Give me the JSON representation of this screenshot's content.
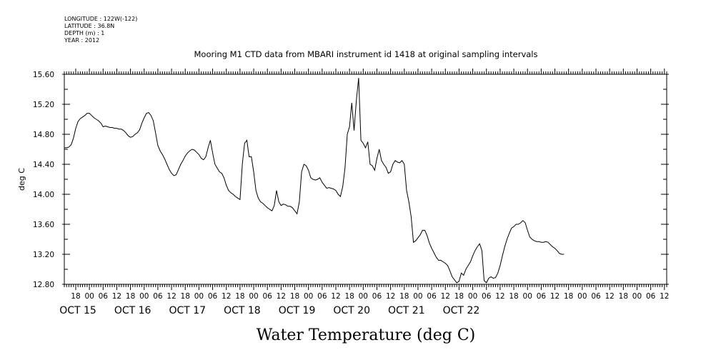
{
  "meta": {
    "longitude": "LONGITUDE : 122W(-122)",
    "latitude": "LATITUDE : 36.8N",
    "depth": "DEPTH (m) : 1",
    "year": "YEAR : 2012"
  },
  "chart_data": {
    "type": "line",
    "title": "Mooring M1 CTD data from MBARI instrument id 1418 at original sampling intervals",
    "xlabel": "Water Temperature (deg C)",
    "ylabel": "deg C",
    "ylim": [
      12.8,
      15.6
    ],
    "yticks": [
      "12.80",
      "13.20",
      "13.60",
      "14.00",
      "14.40",
      "14.80",
      "15.20",
      "15.60"
    ],
    "x_unit": "hours since 2012-10-15 00:00",
    "xlim": [
      13,
      277
    ],
    "hour_labels": [
      "18",
      "00",
      "06",
      "12",
      "18",
      "00",
      "06",
      "12",
      "18",
      "00",
      "06",
      "12",
      "18",
      "00",
      "06",
      "12",
      "18",
      "00",
      "06",
      "12",
      "18",
      "00",
      "06",
      "12",
      "18",
      "00",
      "06",
      "12",
      "18",
      "00",
      "06",
      "12",
      "18",
      "00",
      "06",
      "12",
      "18",
      "00",
      "06",
      "12",
      "18",
      "00",
      "06",
      "12"
    ],
    "day_labels": [
      {
        "label": "OCT 15",
        "hour": 0
      },
      {
        "label": "OCT 16",
        "hour": 24
      },
      {
        "label": "OCT 17",
        "hour": 48
      },
      {
        "label": "OCT 18",
        "hour": 72
      },
      {
        "label": "OCT 19",
        "hour": 96
      },
      {
        "label": "OCT 20",
        "hour": 120
      },
      {
        "label": "OCT 21",
        "hour": 144
      },
      {
        "label": "OCT 22",
        "hour": 168
      }
    ],
    "series": [
      {
        "points": [
          [
            13,
            14.62
          ],
          [
            14,
            14.62
          ],
          [
            15,
            14.63
          ],
          [
            16,
            14.66
          ],
          [
            17,
            14.75
          ],
          [
            18,
            14.88
          ],
          [
            19,
            14.97
          ],
          [
            20,
            15.01
          ],
          [
            21,
            15.03
          ],
          [
            22,
            15.05
          ],
          [
            23,
            15.08
          ],
          [
            24,
            15.08
          ],
          [
            25,
            15.05
          ],
          [
            26,
            15.02
          ],
          [
            27,
            15.0
          ],
          [
            28,
            14.98
          ],
          [
            29,
            14.95
          ],
          [
            30,
            14.9
          ],
          [
            31,
            14.91
          ],
          [
            32,
            14.9
          ],
          [
            33,
            14.89
          ],
          [
            34,
            14.89
          ],
          [
            35,
            14.88
          ],
          [
            36,
            14.88
          ],
          [
            37,
            14.87
          ],
          [
            38,
            14.87
          ],
          [
            39,
            14.85
          ],
          [
            40,
            14.82
          ],
          [
            41,
            14.78
          ],
          [
            42,
            14.76
          ],
          [
            43,
            14.77
          ],
          [
            44,
            14.8
          ],
          [
            45,
            14.82
          ],
          [
            46,
            14.86
          ],
          [
            47,
            14.95
          ],
          [
            48,
            15.02
          ],
          [
            49,
            15.08
          ],
          [
            50,
            15.09
          ],
          [
            51,
            15.05
          ],
          [
            52,
            14.98
          ],
          [
            53,
            14.82
          ],
          [
            54,
            14.65
          ],
          [
            55,
            14.58
          ],
          [
            56,
            14.53
          ],
          [
            57,
            14.47
          ],
          [
            58,
            14.4
          ],
          [
            59,
            14.33
          ],
          [
            60,
            14.28
          ],
          [
            61,
            14.25
          ],
          [
            62,
            14.26
          ],
          [
            63,
            14.33
          ],
          [
            64,
            14.4
          ],
          [
            65,
            14.45
          ],
          [
            66,
            14.51
          ],
          [
            67,
            14.55
          ],
          [
            68,
            14.58
          ],
          [
            69,
            14.6
          ],
          [
            70,
            14.59
          ],
          [
            71,
            14.56
          ],
          [
            72,
            14.53
          ],
          [
            73,
            14.48
          ],
          [
            74,
            14.46
          ],
          [
            75,
            14.5
          ],
          [
            76,
            14.62
          ],
          [
            77,
            14.72
          ],
          [
            78,
            14.55
          ],
          [
            79,
            14.4
          ],
          [
            80,
            14.35
          ],
          [
            81,
            14.3
          ],
          [
            82,
            14.28
          ],
          [
            83,
            14.22
          ],
          [
            84,
            14.12
          ],
          [
            85,
            14.05
          ],
          [
            86,
            14.02
          ],
          [
            87,
            14.0
          ],
          [
            88,
            13.97
          ],
          [
            89,
            13.95
          ],
          [
            90,
            13.93
          ],
          [
            91,
            14.4
          ],
          [
            92,
            14.68
          ],
          [
            93,
            14.72
          ],
          [
            94,
            14.5
          ],
          [
            95,
            14.5
          ],
          [
            96,
            14.3
          ],
          [
            97,
            14.05
          ],
          [
            98,
            13.95
          ],
          [
            99,
            13.9
          ],
          [
            100,
            13.88
          ],
          [
            101,
            13.85
          ],
          [
            102,
            13.82
          ],
          [
            103,
            13.8
          ],
          [
            104,
            13.78
          ],
          [
            105,
            13.85
          ],
          [
            106,
            14.05
          ],
          [
            107,
            13.9
          ],
          [
            108,
            13.85
          ],
          [
            109,
            13.87
          ],
          [
            110,
            13.86
          ],
          [
            111,
            13.84
          ],
          [
            112,
            13.84
          ],
          [
            113,
            13.82
          ],
          [
            114,
            13.78
          ],
          [
            115,
            13.74
          ],
          [
            116,
            13.9
          ],
          [
            117,
            14.3
          ],
          [
            118,
            14.4
          ],
          [
            119,
            14.38
          ],
          [
            120,
            14.32
          ],
          [
            121,
            14.22
          ],
          [
            122,
            14.2
          ],
          [
            123,
            14.19
          ],
          [
            124,
            14.2
          ],
          [
            125,
            14.22
          ],
          [
            126,
            14.16
          ],
          [
            127,
            14.12
          ],
          [
            128,
            14.08
          ],
          [
            129,
            14.09
          ],
          [
            130,
            14.08
          ],
          [
            131,
            14.07
          ],
          [
            132,
            14.05
          ],
          [
            133,
            14.0
          ],
          [
            134,
            13.97
          ],
          [
            135,
            14.1
          ],
          [
            136,
            14.35
          ],
          [
            137,
            14.8
          ],
          [
            138,
            14.9
          ],
          [
            139,
            15.22
          ],
          [
            140,
            14.85
          ],
          [
            141,
            15.25
          ],
          [
            142,
            15.55
          ],
          [
            143,
            14.72
          ],
          [
            144,
            14.68
          ],
          [
            145,
            14.62
          ],
          [
            146,
            14.7
          ],
          [
            147,
            14.4
          ],
          [
            148,
            14.38
          ],
          [
            149,
            14.32
          ],
          [
            150,
            14.48
          ],
          [
            151,
            14.6
          ],
          [
            152,
            14.45
          ],
          [
            153,
            14.4
          ],
          [
            154,
            14.36
          ],
          [
            155,
            14.28
          ],
          [
            156,
            14.3
          ],
          [
            157,
            14.4
          ],
          [
            158,
            14.45
          ],
          [
            159,
            14.43
          ],
          [
            160,
            14.42
          ],
          [
            161,
            14.45
          ],
          [
            162,
            14.4
          ],
          [
            163,
            14.05
          ],
          [
            164,
            13.9
          ],
          [
            165,
            13.7
          ],
          [
            166,
            13.36
          ],
          [
            167,
            13.38
          ],
          [
            168,
            13.42
          ],
          [
            169,
            13.46
          ],
          [
            170,
            13.52
          ],
          [
            171,
            13.52
          ],
          [
            172,
            13.45
          ],
          [
            173,
            13.35
          ],
          [
            174,
            13.28
          ],
          [
            175,
            13.22
          ],
          [
            176,
            13.16
          ],
          [
            177,
            13.12
          ],
          [
            178,
            13.12
          ],
          [
            179,
            13.1
          ],
          [
            180,
            13.08
          ],
          [
            181,
            13.05
          ],
          [
            182,
            12.98
          ],
          [
            183,
            12.9
          ],
          [
            184,
            12.86
          ],
          [
            185,
            12.82
          ],
          [
            186,
            12.84
          ],
          [
            187,
            12.95
          ],
          [
            188,
            12.92
          ],
          [
            189,
            13.0
          ],
          [
            190,
            13.05
          ],
          [
            191,
            13.1
          ],
          [
            192,
            13.18
          ],
          [
            193,
            13.25
          ],
          [
            194,
            13.3
          ],
          [
            195,
            13.34
          ],
          [
            196,
            13.25
          ],
          [
            197,
            12.85
          ],
          [
            198,
            12.82
          ],
          [
            199,
            12.88
          ],
          [
            200,
            12.9
          ],
          [
            201,
            12.88
          ],
          [
            202,
            12.89
          ],
          [
            203,
            12.95
          ],
          [
            204,
            13.05
          ],
          [
            205,
            13.18
          ],
          [
            206,
            13.3
          ],
          [
            207,
            13.4
          ],
          [
            208,
            13.48
          ],
          [
            209,
            13.55
          ],
          [
            210,
            13.57
          ],
          [
            211,
            13.6
          ],
          [
            212,
            13.6
          ],
          [
            213,
            13.62
          ],
          [
            214,
            13.65
          ],
          [
            215,
            13.62
          ],
          [
            216,
            13.52
          ],
          [
            217,
            13.43
          ],
          [
            218,
            13.4
          ],
          [
            219,
            13.38
          ],
          [
            220,
            13.37
          ],
          [
            221,
            13.37
          ],
          [
            222,
            13.36
          ],
          [
            223,
            13.36
          ],
          [
            224,
            13.37
          ],
          [
            225,
            13.36
          ],
          [
            226,
            13.33
          ],
          [
            227,
            13.3
          ],
          [
            228,
            13.28
          ],
          [
            229,
            13.25
          ],
          [
            230,
            13.21
          ],
          [
            231,
            13.2
          ],
          [
            232,
            13.2
          ]
        ]
      }
    ]
  }
}
